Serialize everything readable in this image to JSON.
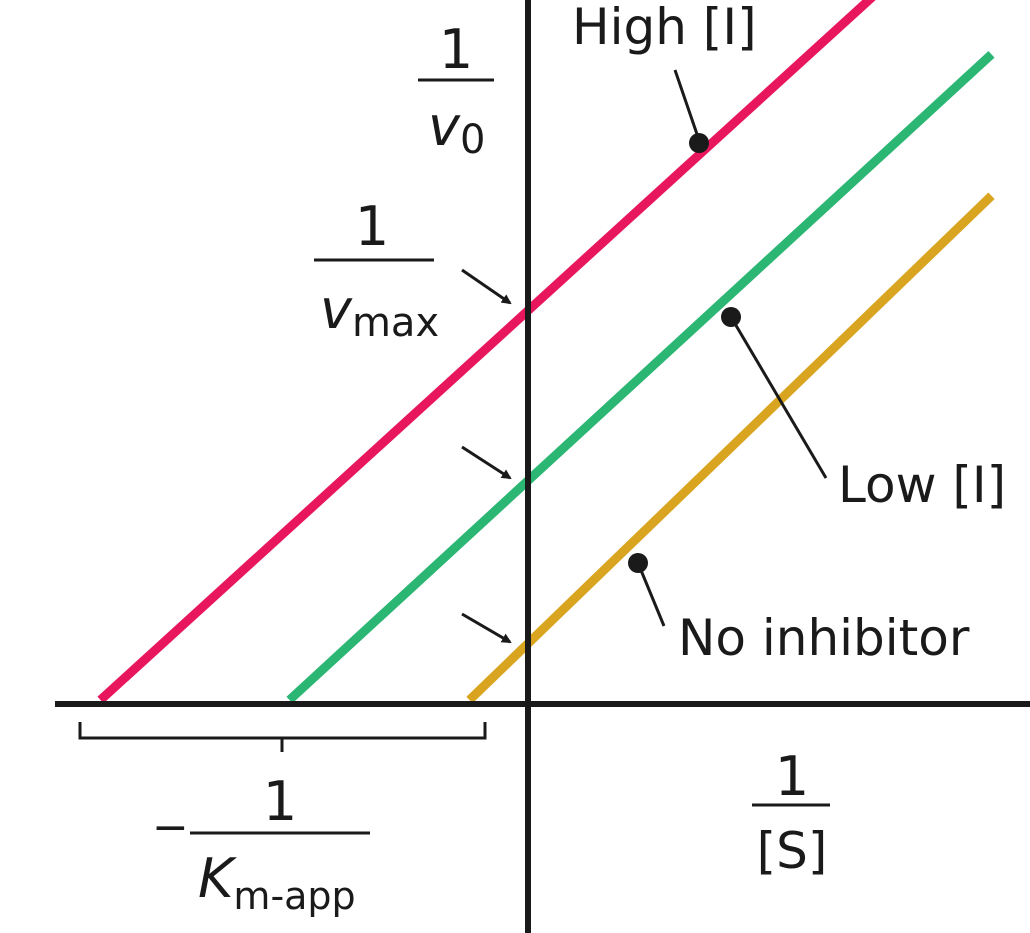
{
  "chart_data": {
    "type": "line",
    "x_axis_label": {
      "numerator": "1",
      "denominator": "[S]"
    },
    "y_axis_label": {
      "numerator": "1",
      "denominator_symbol": "v",
      "denominator_subscript": "0"
    },
    "intercept_label": {
      "numerator": "1",
      "denominator_symbol": "v",
      "denominator_subscript": "max"
    },
    "x_intercept_label": {
      "sign": "−",
      "numerator": "1",
      "denominator_symbol": "K",
      "denominator_subscript": "m-app"
    },
    "x_range": [
      -1.0,
      1.1
    ],
    "y_range": [
      0,
      1.0
    ],
    "series": [
      {
        "name": "High [I]",
        "color": "#e8175d",
        "x_intercept": -0.95,
        "y_intercept": 0.55
      },
      {
        "name": "Low [I]",
        "color": "#2bb673",
        "x_intercept": -0.53,
        "y_intercept": 0.31
      },
      {
        "name": "No inhibitor",
        "color": "#d9a520",
        "x_intercept": -0.13,
        "y_intercept": 0.08
      }
    ]
  }
}
